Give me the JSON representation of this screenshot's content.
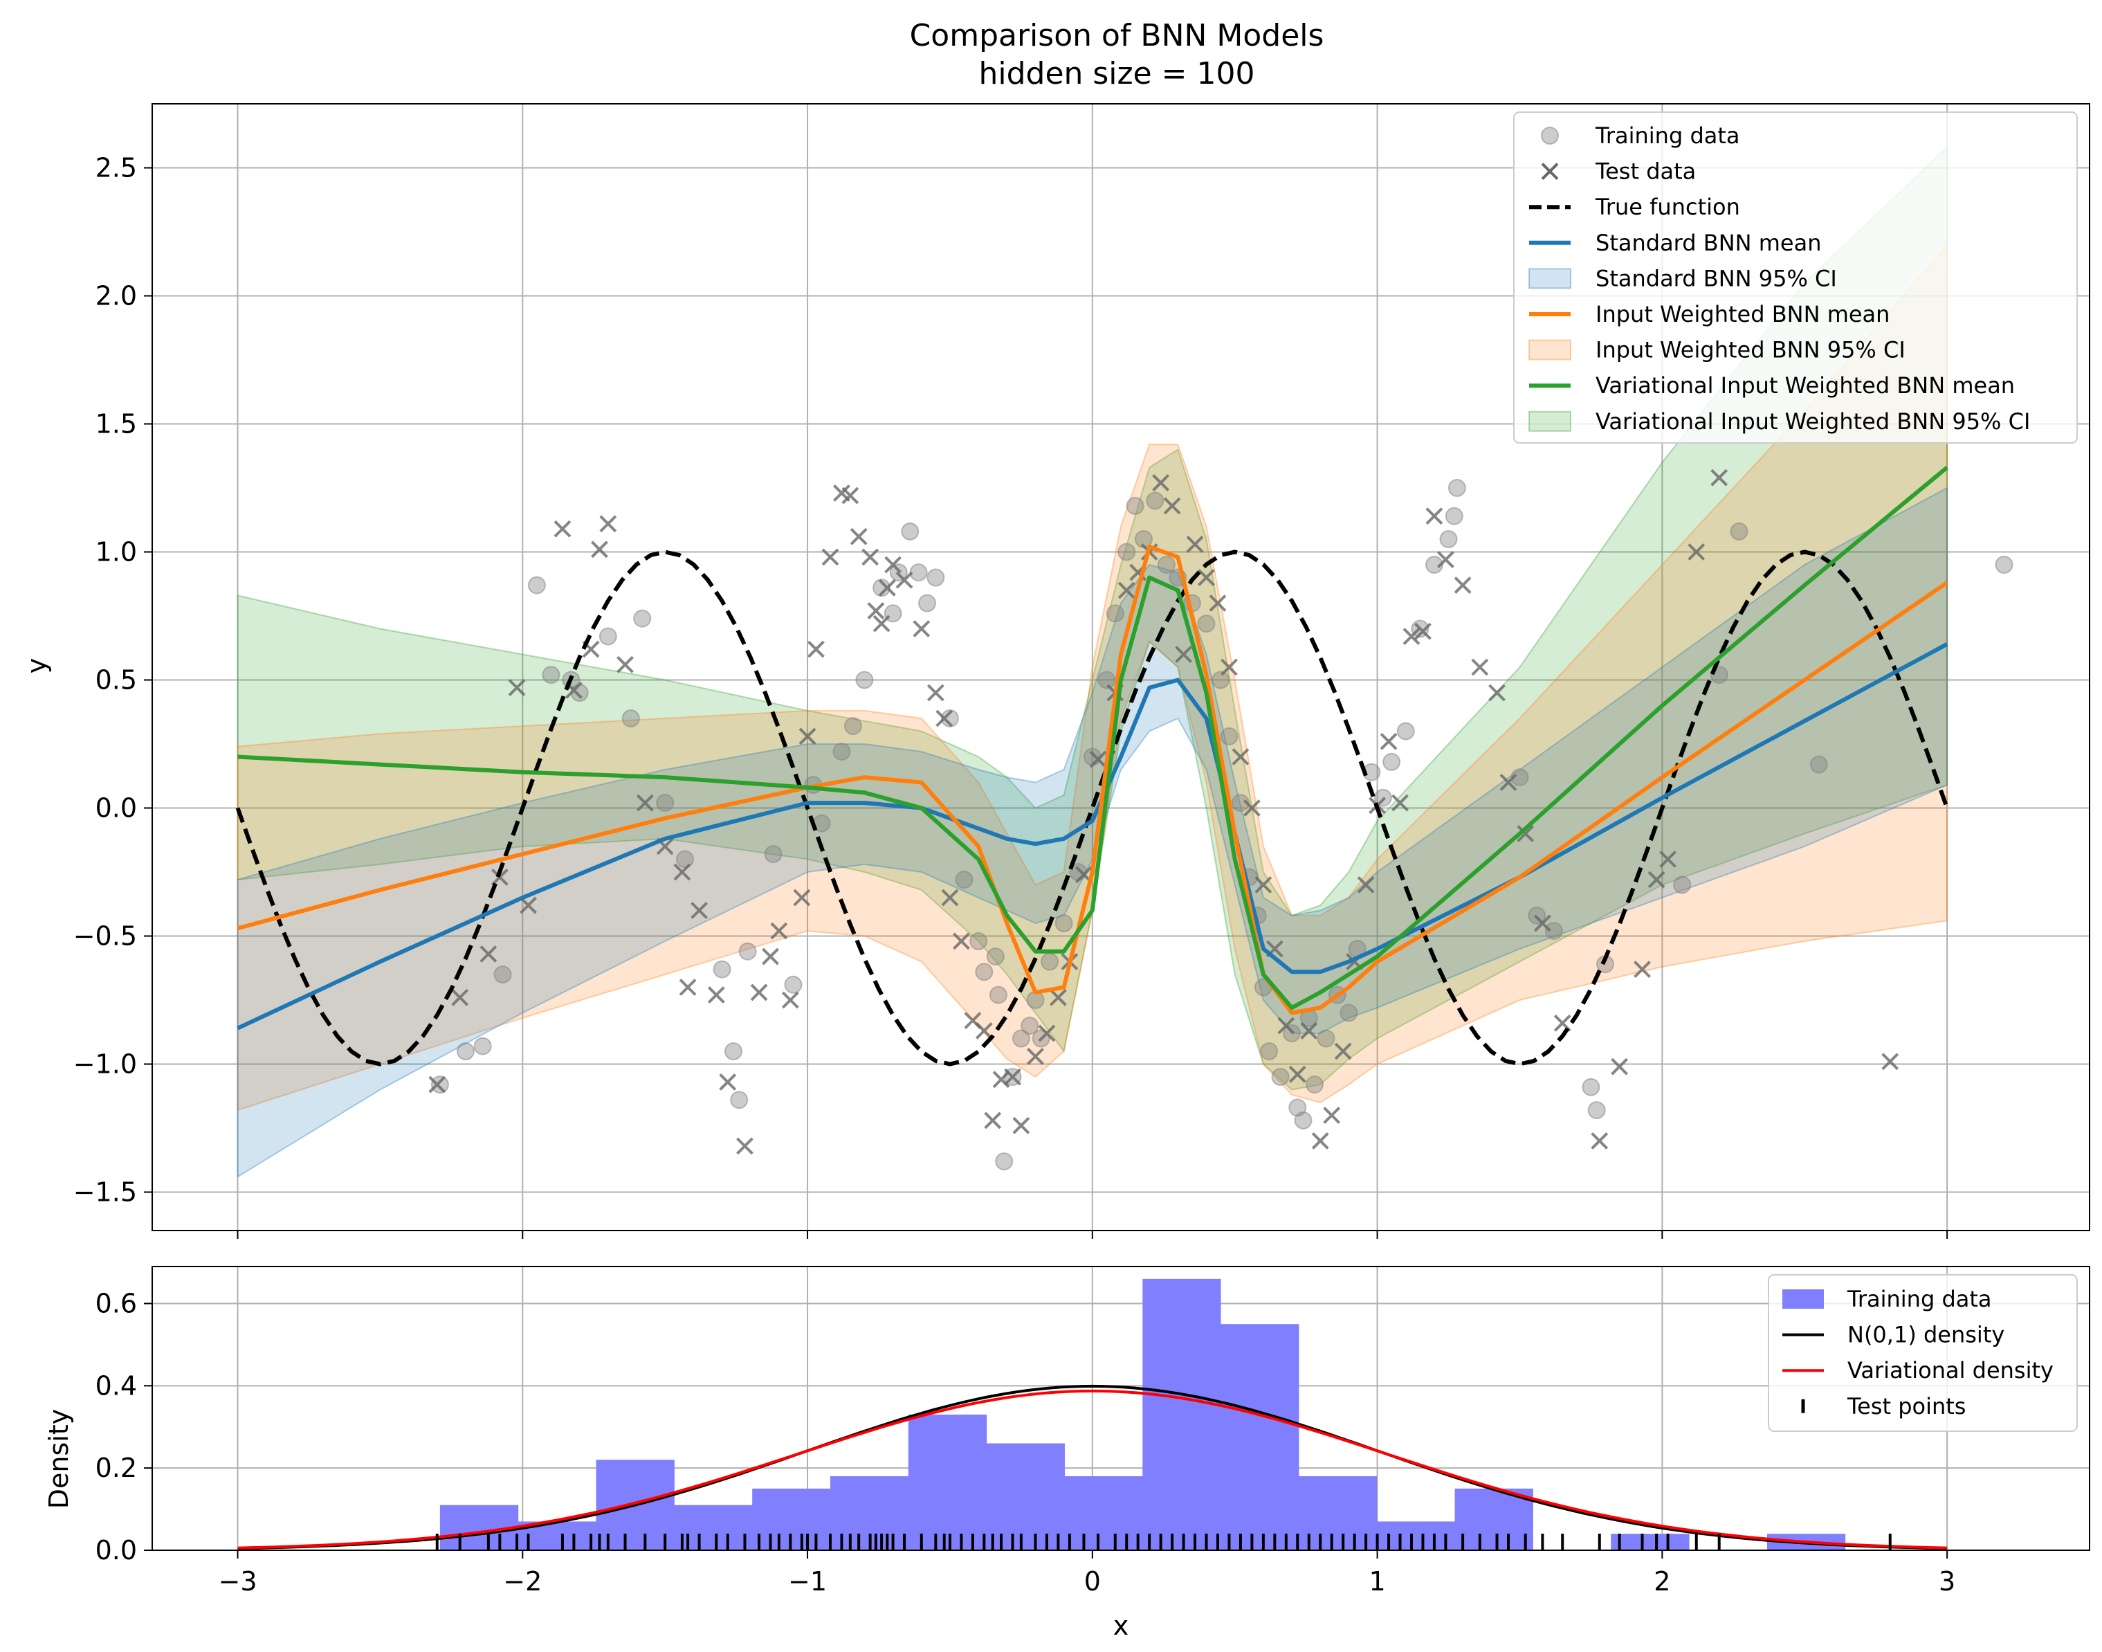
{
  "chart_data": [
    {
      "type": "line",
      "title": "Comparison of BNN Models",
      "subtitle": "hidden size = 100",
      "xlabel": "",
      "ylabel": "y",
      "xlim": [
        -3.3,
        3.5
      ],
      "ylim": [
        -1.65,
        2.75
      ],
      "grid": true,
      "legend_position": "upper-right",
      "xticks": [
        {
          "value": -3,
          "label": "−3"
        },
        {
          "value": -2,
          "label": "−2"
        },
        {
          "value": -1,
          "label": "−1"
        },
        {
          "value": 0,
          "label": "0"
        },
        {
          "value": 1,
          "label": "1"
        },
        {
          "value": 2,
          "label": "2"
        },
        {
          "value": 3,
          "label": "3"
        }
      ],
      "yticks": [
        {
          "value": -1.5,
          "label": "−1.5"
        },
        {
          "value": -1.0,
          "label": "−1.0"
        },
        {
          "value": -0.5,
          "label": "−0.5"
        },
        {
          "value": 0.0,
          "label": "0.0"
        },
        {
          "value": 0.5,
          "label": "0.5"
        },
        {
          "value": 1.0,
          "label": "1.0"
        },
        {
          "value": 1.5,
          "label": "1.5"
        },
        {
          "value": 2.0,
          "label": "2.0"
        },
        {
          "value": 2.5,
          "label": "2.5"
        }
      ],
      "x_grid": [
        -3.0,
        -2.5,
        -2.0,
        -1.5,
        -1.0,
        -0.8,
        -0.6,
        -0.4,
        -0.3,
        -0.2,
        -0.1,
        0.0,
        0.1,
        0.2,
        0.3,
        0.4,
        0.5,
        0.6,
        0.7,
        0.8,
        0.9,
        1.0,
        1.5,
        2.0,
        2.5,
        3.0
      ],
      "series": [
        {
          "name": "Variational Input Weighted BNN 95% CI",
          "kind": "band",
          "color": "#2ca02c",
          "upper": [
            0.83,
            0.7,
            0.6,
            0.5,
            0.38,
            0.34,
            0.3,
            0.2,
            0.12,
            0.0,
            0.05,
            0.5,
            0.95,
            1.33,
            1.4,
            1.05,
            0.38,
            -0.25,
            -0.42,
            -0.38,
            -0.25,
            -0.05,
            0.55,
            1.35,
            2.05,
            2.58
          ],
          "lower": [
            -0.28,
            -0.22,
            -0.15,
            -0.12,
            -0.2,
            -0.25,
            -0.32,
            -0.52,
            -0.65,
            -0.8,
            -0.95,
            -0.4,
            0.3,
            0.65,
            0.55,
            0.0,
            -0.65,
            -1.0,
            -1.1,
            -1.08,
            -0.98,
            -0.9,
            -0.6,
            -0.3,
            -0.1,
            0.09
          ]
        },
        {
          "name": "Input Weighted BNN 95% CI",
          "kind": "band",
          "color": "#ff7f0e",
          "upper": [
            0.24,
            0.29,
            0.32,
            0.35,
            0.38,
            0.38,
            0.35,
            0.1,
            -0.1,
            -0.3,
            -0.25,
            0.55,
            1.1,
            1.42,
            1.42,
            1.1,
            0.5,
            -0.15,
            -0.42,
            -0.42,
            -0.35,
            -0.2,
            0.35,
            0.95,
            1.55,
            2.2
          ],
          "lower": [
            -1.18,
            -1.0,
            -0.82,
            -0.65,
            -0.48,
            -0.5,
            -0.6,
            -0.85,
            -0.98,
            -1.05,
            -0.95,
            -0.4,
            0.35,
            0.65,
            0.55,
            0.1,
            -0.55,
            -1.0,
            -1.12,
            -1.15,
            -1.08,
            -1.0,
            -0.75,
            -0.62,
            -0.52,
            -0.44
          ]
        },
        {
          "name": "Standard BNN 95% CI",
          "kind": "band",
          "color": "#1f77b4",
          "upper": [
            -0.28,
            -0.12,
            0.02,
            0.15,
            0.25,
            0.25,
            0.22,
            0.15,
            0.12,
            0.1,
            0.15,
            0.45,
            0.8,
            0.95,
            0.92,
            0.6,
            0.1,
            -0.35,
            -0.42,
            -0.4,
            -0.35,
            -0.25,
            0.15,
            0.55,
            0.95,
            1.25
          ],
          "lower": [
            -1.44,
            -1.1,
            -0.8,
            -0.52,
            -0.25,
            -0.22,
            -0.25,
            -0.35,
            -0.4,
            -0.45,
            -0.42,
            -0.2,
            0.15,
            0.3,
            0.35,
            0.15,
            -0.3,
            -0.75,
            -0.88,
            -0.88,
            -0.82,
            -0.78,
            -0.55,
            -0.35,
            -0.15,
            0.09
          ]
        },
        {
          "name": "Standard BNN mean",
          "kind": "line",
          "color": "#1f77b4",
          "y": [
            -0.86,
            -0.6,
            -0.35,
            -0.12,
            0.02,
            0.02,
            0.0,
            -0.08,
            -0.12,
            -0.14,
            -0.12,
            -0.05,
            0.2,
            0.47,
            0.5,
            0.35,
            -0.1,
            -0.55,
            -0.64,
            -0.64,
            -0.6,
            -0.55,
            -0.27,
            0.04,
            0.34,
            0.64
          ]
        },
        {
          "name": "Input Weighted BNN mean",
          "kind": "line",
          "color": "#ff7f0e",
          "y": [
            -0.47,
            -0.32,
            -0.18,
            -0.04,
            0.08,
            0.12,
            0.1,
            -0.15,
            -0.45,
            -0.72,
            -0.7,
            -0.25,
            0.6,
            1.02,
            0.98,
            0.52,
            -0.1,
            -0.65,
            -0.8,
            -0.78,
            -0.7,
            -0.6,
            -0.27,
            0.12,
            0.5,
            0.88
          ]
        },
        {
          "name": "Variational Input Weighted BNN mean",
          "kind": "line",
          "color": "#2ca02c",
          "y": [
            0.2,
            0.17,
            0.14,
            0.12,
            0.08,
            0.06,
            0.0,
            -0.2,
            -0.42,
            -0.56,
            -0.56,
            -0.4,
            0.5,
            0.9,
            0.85,
            0.45,
            -0.2,
            -0.65,
            -0.78,
            -0.72,
            -0.65,
            -0.58,
            -0.1,
            0.4,
            0.87,
            1.33
          ]
        },
        {
          "name": "True function",
          "kind": "function",
          "formula": "sin(pi*x)",
          "color": "#000000"
        }
      ],
      "training_points": {
        "name": "Training data",
        "color": "#808080",
        "x": [
          -2.29,
          -2.2,
          -2.14,
          -2.07,
          -1.95,
          -1.9,
          -1.83,
          -1.8,
          -1.7,
          -1.62,
          -1.58,
          -1.5,
          -1.43,
          -1.3,
          -1.26,
          -1.24,
          -1.21,
          -1.12,
          -1.05,
          -0.98,
          -0.95,
          -0.88,
          -0.84,
          -0.8,
          -0.74,
          -0.7,
          -0.68,
          -0.64,
          -0.61,
          -0.58,
          -0.55,
          -0.5,
          -0.45,
          -0.4,
          -0.38,
          -0.34,
          -0.33,
          -0.31,
          -0.28,
          -0.25,
          -0.22,
          -0.2,
          -0.18,
          -0.15,
          -0.1,
          -0.05,
          0.0,
          0.05,
          0.08,
          0.12,
          0.15,
          0.18,
          0.22,
          0.26,
          0.3,
          0.35,
          0.4,
          0.45,
          0.48,
          0.52,
          0.55,
          0.58,
          0.6,
          0.62,
          0.66,
          0.7,
          0.72,
          0.74,
          0.76,
          0.78,
          0.82,
          0.86,
          0.9,
          0.93,
          0.98,
          1.02,
          1.05,
          1.1,
          1.15,
          1.2,
          1.25,
          1.27,
          1.28,
          1.5,
          1.56,
          1.62,
          1.75,
          1.77,
          1.8,
          2.07,
          2.2,
          2.27,
          2.55,
          3.2
        ],
        "y": [
          -1.08,
          -0.95,
          -0.93,
          -0.65,
          0.87,
          0.52,
          0.5,
          0.45,
          0.67,
          0.35,
          0.74,
          0.02,
          -0.2,
          -0.63,
          -0.95,
          -1.14,
          -0.56,
          -0.18,
          -0.69,
          0.09,
          -0.06,
          0.22,
          0.32,
          0.5,
          0.86,
          0.76,
          0.92,
          1.08,
          0.92,
          0.8,
          0.9,
          0.35,
          -0.28,
          -0.52,
          -0.64,
          -0.58,
          -0.73,
          -1.38,
          -1.05,
          -0.9,
          -0.85,
          -0.75,
          -0.9,
          -0.6,
          -0.45,
          -0.25,
          0.2,
          0.5,
          0.76,
          1.0,
          1.18,
          1.05,
          1.2,
          0.95,
          0.9,
          0.8,
          0.72,
          0.5,
          0.28,
          0.02,
          -0.27,
          -0.42,
          -0.7,
          -0.95,
          -1.05,
          -0.88,
          -1.17,
          -1.22,
          -0.82,
          -1.08,
          -0.9,
          -0.73,
          -0.8,
          -0.55,
          0.14,
          0.04,
          0.18,
          0.3,
          0.7,
          0.95,
          1.05,
          1.14,
          1.25,
          0.12,
          -0.42,
          -0.48,
          -1.09,
          -1.18,
          -0.61,
          -0.3,
          0.52,
          1.08,
          0.17,
          0.95
        ]
      },
      "test_points": {
        "name": "Test data",
        "color": "#666666",
        "x": [
          -2.3,
          -2.22,
          -2.12,
          -2.08,
          -2.02,
          -1.98,
          -1.86,
          -1.82,
          -1.76,
          -1.73,
          -1.7,
          -1.64,
          -1.57,
          -1.5,
          -1.44,
          -1.42,
          -1.38,
          -1.32,
          -1.28,
          -1.22,
          -1.17,
          -1.13,
          -1.1,
          -1.06,
          -1.02,
          -1.0,
          -0.97,
          -0.92,
          -0.88,
          -0.85,
          -0.82,
          -0.78,
          -0.76,
          -0.74,
          -0.72,
          -0.7,
          -0.66,
          -0.6,
          -0.55,
          -0.52,
          -0.5,
          -0.46,
          -0.42,
          -0.38,
          -0.35,
          -0.32,
          -0.28,
          -0.25,
          -0.2,
          -0.16,
          -0.12,
          -0.08,
          -0.03,
          0.02,
          0.08,
          0.12,
          0.16,
          0.2,
          0.24,
          0.28,
          0.32,
          0.36,
          0.4,
          0.44,
          0.48,
          0.52,
          0.56,
          0.6,
          0.64,
          0.68,
          0.72,
          0.76,
          0.8,
          0.84,
          0.88,
          0.92,
          0.96,
          1.0,
          1.04,
          1.08,
          1.12,
          1.16,
          1.2,
          1.24,
          1.3,
          1.36,
          1.42,
          1.46,
          1.52,
          1.58,
          1.65,
          1.78,
          1.85,
          1.93,
          1.98,
          2.02,
          2.12,
          2.2,
          2.8
        ],
        "y": [
          -1.08,
          -0.74,
          -0.57,
          -0.27,
          0.47,
          -0.38,
          1.09,
          0.46,
          0.62,
          1.01,
          1.11,
          0.56,
          0.02,
          -0.15,
          -0.25,
          -0.7,
          -0.4,
          -0.73,
          -1.07,
          -1.32,
          -0.72,
          -0.58,
          -0.48,
          -0.75,
          -0.35,
          0.28,
          0.62,
          0.98,
          1.23,
          1.22,
          1.06,
          0.98,
          0.77,
          0.72,
          0.86,
          0.95,
          0.89,
          0.7,
          0.45,
          0.35,
          -0.35,
          -0.52,
          -0.83,
          -0.87,
          -1.22,
          -1.06,
          -1.05,
          -1.24,
          -0.97,
          -0.88,
          -0.74,
          -0.6,
          -0.26,
          0.19,
          0.45,
          0.85,
          0.92,
          1.0,
          1.27,
          1.18,
          0.6,
          1.03,
          0.9,
          0.8,
          0.55,
          0.2,
          0.0,
          -0.3,
          -0.55,
          -0.85,
          -1.04,
          -0.87,
          -1.3,
          -1.2,
          -0.95,
          -0.6,
          -0.3,
          0.01,
          0.26,
          0.02,
          0.67,
          0.69,
          1.14,
          0.97,
          0.87,
          0.55,
          0.45,
          0.1,
          -0.1,
          -0.45,
          -0.84,
          -1.3,
          -1.01,
          -0.63,
          -0.28,
          -0.2,
          1.0,
          1.29,
          -0.99
        ]
      }
    },
    {
      "type": "bar",
      "title": "",
      "xlabel": "x",
      "ylabel": "Density",
      "xlim": [
        -3.3,
        3.5
      ],
      "ylim": [
        0,
        0.69
      ],
      "grid": true,
      "legend_position": "upper-right",
      "xticks": [
        {
          "value": -3,
          "label": "−3"
        },
        {
          "value": -2,
          "label": "−2"
        },
        {
          "value": -1,
          "label": "−1"
        },
        {
          "value": 0,
          "label": "0"
        },
        {
          "value": 1,
          "label": "1"
        },
        {
          "value": 2,
          "label": "2"
        },
        {
          "value": 3,
          "label": "3"
        }
      ],
      "yticks": [
        {
          "value": 0.0,
          "label": "0.0"
        },
        {
          "value": 0.2,
          "label": "0.2"
        },
        {
          "value": 0.4,
          "label": "0.4"
        },
        {
          "value": 0.6,
          "label": "0.6"
        }
      ],
      "histogram": {
        "name": "Training data",
        "color": "#8080ff",
        "bin_start": -2.29,
        "bin_width": 0.274,
        "values": [
          0.11,
          0.07,
          0.22,
          0.11,
          0.15,
          0.18,
          0.33,
          0.26,
          0.18,
          0.66,
          0.55,
          0.18,
          0.07,
          0.15,
          0.0,
          0.04,
          0.0,
          0.04
        ]
      },
      "density_curves": [
        {
          "name": "N(0,1) density",
          "color": "#000000",
          "mean": 0,
          "std": 1
        },
        {
          "name": "Variational density",
          "color": "#ff0000",
          "mean": 0,
          "std": 1.03
        }
      ],
      "test_ticks": {
        "name": "Test points",
        "color": "#000000",
        "x": [
          -2.3,
          -2.22,
          -2.12,
          -2.08,
          -2.02,
          -1.98,
          -1.86,
          -1.82,
          -1.76,
          -1.73,
          -1.7,
          -1.64,
          -1.57,
          -1.5,
          -1.44,
          -1.42,
          -1.38,
          -1.32,
          -1.28,
          -1.22,
          -1.17,
          -1.13,
          -1.1,
          -1.06,
          -1.02,
          -1.0,
          -0.97,
          -0.92,
          -0.88,
          -0.85,
          -0.82,
          -0.78,
          -0.76,
          -0.74,
          -0.72,
          -0.7,
          -0.66,
          -0.6,
          -0.55,
          -0.52,
          -0.5,
          -0.46,
          -0.42,
          -0.38,
          -0.35,
          -0.32,
          -0.28,
          -0.25,
          -0.2,
          -0.16,
          -0.12,
          -0.08,
          -0.03,
          0.02,
          0.08,
          0.12,
          0.16,
          0.2,
          0.24,
          0.28,
          0.32,
          0.36,
          0.4,
          0.44,
          0.48,
          0.52,
          0.56,
          0.6,
          0.64,
          0.68,
          0.72,
          0.76,
          0.8,
          0.84,
          0.88,
          0.92,
          0.96,
          1.0,
          1.04,
          1.08,
          1.12,
          1.16,
          1.2,
          1.24,
          1.3,
          1.36,
          1.42,
          1.46,
          1.52,
          1.58,
          1.65,
          1.78,
          1.85,
          1.93,
          1.98,
          2.02,
          2.12,
          2.2,
          2.8
        ]
      }
    }
  ]
}
